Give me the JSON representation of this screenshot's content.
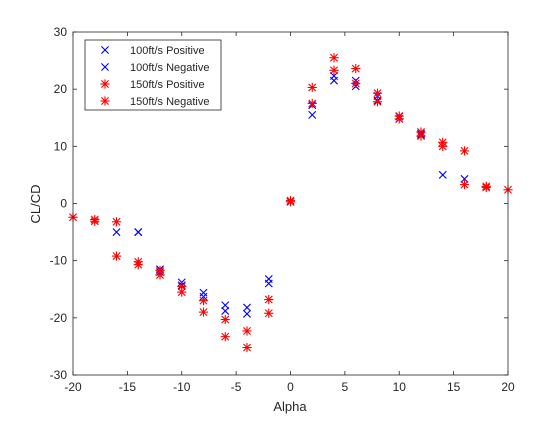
{
  "chart_data": {
    "type": "scatter",
    "title": "",
    "xlabel": "Alpha",
    "ylabel": "CL/CD",
    "xlim": [
      -20,
      20
    ],
    "ylim": [
      -30,
      30
    ],
    "xticks": [
      -20,
      -15,
      -10,
      -5,
      0,
      5,
      10,
      15,
      20
    ],
    "yticks": [
      -30,
      -20,
      -10,
      0,
      10,
      20,
      30
    ],
    "xtick_labels": [
      "-20",
      "-15",
      "-10",
      "-5",
      "0",
      "5",
      "10",
      "15",
      "20"
    ],
    "ytick_labels": [
      "-30",
      "-20",
      "-10",
      "0",
      "10",
      "20",
      "30"
    ],
    "grid": false,
    "legend_position": "top-left",
    "series": [
      {
        "name": "100ft/s Positive",
        "marker": "x",
        "color": "#0000ff",
        "x": [
          0,
          2,
          2,
          4,
          4,
          6,
          6,
          8,
          8,
          10,
          10,
          12,
          12,
          14,
          16
        ],
        "y": [
          0.3,
          15.5,
          17.2,
          21.5,
          22.3,
          20.5,
          21.5,
          18.0,
          18.8,
          14.8,
          15.2,
          12.0,
          12.2,
          5.0,
          4.3
        ]
      },
      {
        "name": "100ft/s Negative",
        "marker": "x",
        "color": "#0000ff",
        "x": [
          -2,
          -2,
          -4,
          -4,
          -6,
          -6,
          -8,
          -8,
          -10,
          -10,
          -12,
          -12,
          -14,
          -14,
          -16
        ],
        "y": [
          -13.2,
          -14.0,
          -18.2,
          -19.3,
          -17.8,
          -18.8,
          -15.6,
          -16.3,
          -13.8,
          -14.3,
          -11.5,
          -12.0,
          -5.0,
          -5.0,
          -5.0
        ]
      },
      {
        "name": "150ft/s Positive",
        "marker": "star",
        "color": "#ff0000",
        "x": [
          0,
          0,
          2,
          2,
          4,
          4,
          6,
          6,
          8,
          8,
          10,
          10,
          12,
          12,
          14,
          14,
          16,
          16,
          18,
          18,
          20
        ],
        "y": [
          0.3,
          0.5,
          17.5,
          20.3,
          23.3,
          25.5,
          21.0,
          23.6,
          17.8,
          19.3,
          14.8,
          15.3,
          11.8,
          12.5,
          10.0,
          10.7,
          3.3,
          9.2,
          2.8,
          3.0,
          2.4
        ]
      },
      {
        "name": "150ft/s Negative",
        "marker": "star",
        "color": "#ff0000",
        "x": [
          -2,
          -2,
          -4,
          -4,
          -6,
          -6,
          -8,
          -8,
          -10,
          -10,
          -12,
          -12,
          -14,
          -14,
          -16,
          -16,
          -18,
          -18,
          -20
        ],
        "y": [
          -16.8,
          -19.2,
          -22.3,
          -25.2,
          -20.3,
          -23.3,
          -17.0,
          -19.0,
          -14.5,
          -15.5,
          -11.7,
          -12.5,
          -10.2,
          -10.7,
          -3.2,
          -9.2,
          -2.8,
          -3.1,
          -2.4
        ]
      }
    ]
  }
}
